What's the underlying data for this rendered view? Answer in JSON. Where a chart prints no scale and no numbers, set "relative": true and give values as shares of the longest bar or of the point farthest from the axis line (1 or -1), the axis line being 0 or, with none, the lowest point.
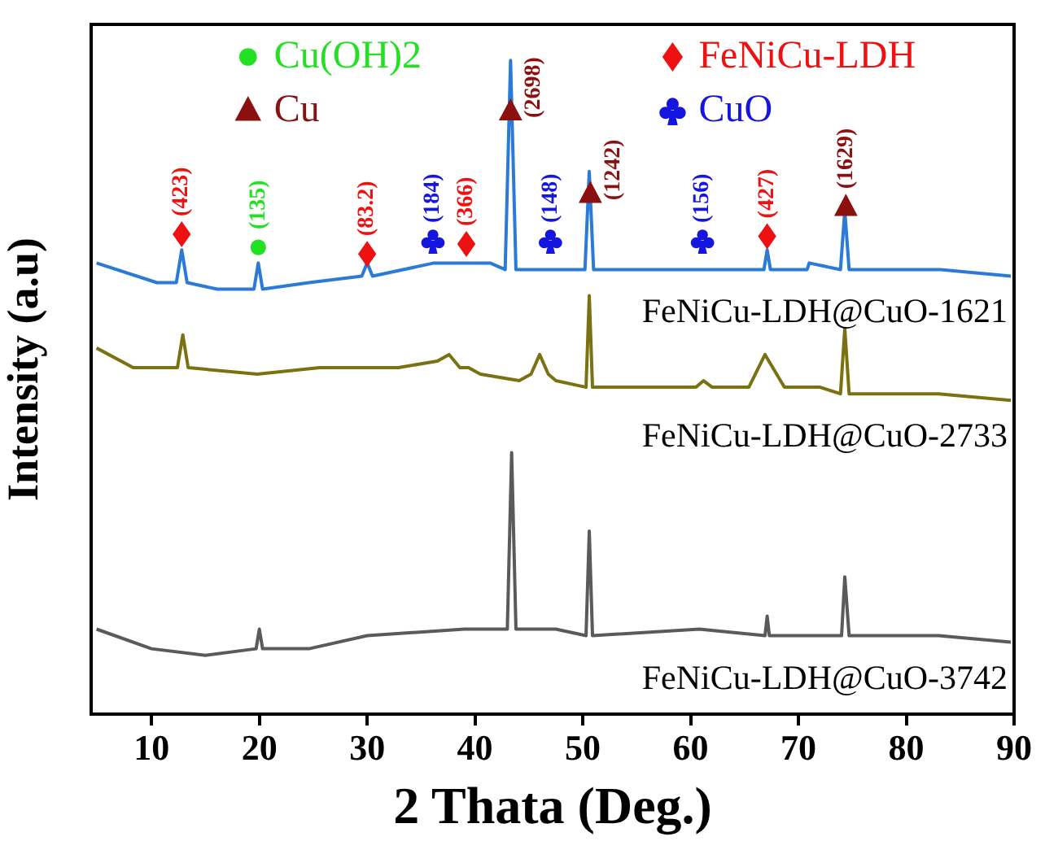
{
  "chart_data": {
    "type": "line",
    "relative": true,
    "xlabel": "2 Thata (Deg.)",
    "ylabel": "Intensity (a.u)",
    "xlim": [
      4.4,
      90
    ],
    "xticks": [
      10,
      20,
      30,
      40,
      50,
      60,
      70,
      80,
      90
    ],
    "legend": "top",
    "series": [
      {
        "name": "FeNiCu-LDH@CuO-1621",
        "color": "#2a7ad6",
        "x": [
          4.9,
          10.5,
          12.3,
          12.8,
          13.3,
          16.1,
          19.5,
          19.9,
          20.3,
          24.6,
          29.5,
          30.0,
          30.5,
          36.2,
          41.4,
          42.8,
          43.3,
          43.8,
          47,
          50.2,
          50.6,
          51.0,
          55.3,
          60.8,
          66.8,
          67.1,
          67.4,
          70.8,
          71,
          73.9,
          74.3,
          74.7,
          83.2,
          89.7
        ],
        "values": [
          0.69,
          0.66,
          0.66,
          0.71,
          0.66,
          0.65,
          0.65,
          0.69,
          0.65,
          0.66,
          0.67,
          0.69,
          0.67,
          0.69,
          0.69,
          0.68,
          1,
          0.68,
          0.68,
          0.68,
          0.83,
          0.68,
          0.68,
          0.68,
          0.68,
          0.71,
          0.68,
          0.68,
          0.69,
          0.68,
          0.77,
          0.68,
          0.68,
          0.67
        ]
      },
      {
        "name": "FeNiCu-LDH@CuO-2733",
        "color": "#7a7212",
        "x": [
          4.9,
          8.3,
          12.4,
          12.9,
          13.4,
          19.8,
          25.6,
          32.9,
          36.5,
          37.6,
          38.6,
          39.4,
          40.5,
          44.1,
          45.2,
          46,
          46.8,
          47.5,
          50.3,
          50.6,
          50.9,
          55,
          60.5,
          61.2,
          62,
          65.4,
          66.9,
          68.7,
          72,
          73.9,
          74.3,
          74.7,
          83,
          89.7
        ],
        "values": [
          0.56,
          0.53,
          0.53,
          0.58,
          0.53,
          0.52,
          0.53,
          0.53,
          0.54,
          0.55,
          0.53,
          0.53,
          0.52,
          0.51,
          0.52,
          0.55,
          0.52,
          0.51,
          0.5,
          0.64,
          0.5,
          0.5,
          0.5,
          0.51,
          0.5,
          0.5,
          0.55,
          0.5,
          0.5,
          0.49,
          0.59,
          0.49,
          0.49,
          0.48
        ]
      },
      {
        "name": "FeNiCu-LDH@CuO-3742",
        "color": "#5a5a5a",
        "x": [
          4.9,
          10,
          15,
          19.7,
          20,
          20.3,
          24.6,
          30,
          39,
          43.0,
          43.4,
          43.8,
          47.5,
          50.3,
          50.6,
          50.9,
          60.8,
          66.9,
          67.1,
          67.3,
          72,
          74.0,
          74.3,
          74.7,
          83,
          89.7
        ],
        "values": [
          0.13,
          0.1,
          0.09,
          0.1,
          0.13,
          0.1,
          0.1,
          0.12,
          0.13,
          0.13,
          0.4,
          0.13,
          0.13,
          0.12,
          0.28,
          0.12,
          0.13,
          0.12,
          0.15,
          0.12,
          0.12,
          0.12,
          0.21,
          0.12,
          0.12,
          0.11
        ]
      },
      {
        "type": "scatter",
        "name": "Cu(OH)2",
        "color": "#22e022",
        "marker": "circle",
        "x": [
          19.9
        ],
        "values": [
          0.714
        ]
      },
      {
        "type": "scatter",
        "name": "Cu",
        "color": "#8b1010",
        "marker": "triangle",
        "x": [
          43.3,
          50.7,
          74.4
        ],
        "values": [
          0.922,
          0.796,
          0.776
        ]
      },
      {
        "type": "scatter",
        "name": "FeNiCu-LDH",
        "color": "#ee1111",
        "marker": "diamond",
        "x": [
          12.8,
          30.0,
          39.2,
          67.1
        ],
        "values": [
          0.734,
          0.704,
          0.719,
          0.731
        ]
      },
      {
        "type": "scatter",
        "name": "CuO",
        "color": "#1515e0",
        "marker": "cross",
        "x": [
          36.1,
          47.0,
          61.1
        ],
        "values": [
          0.724,
          0.724,
          0.724
        ]
      }
    ],
    "annotations": [
      {
        "text": "(423)",
        "x": 12.8,
        "y": 0.734
      },
      {
        "text": "(135)",
        "x": 19.9,
        "y": 0.714
      },
      {
        "text": "(83.2)",
        "x": 30.0,
        "y": 0.704
      },
      {
        "text": "(184)",
        "x": 36.1,
        "y": 0.724
      },
      {
        "text": "(366)",
        "x": 39.2,
        "y": 0.719
      },
      {
        "text": "(2698)",
        "x": 43.3,
        "y": 0.922
      },
      {
        "text": "(148)",
        "x": 47.0,
        "y": 0.724
      },
      {
        "text": "(1242)",
        "x": 50.7,
        "y": 0.796
      },
      {
        "text": "(156)",
        "x": 61.1,
        "y": 0.724
      },
      {
        "text": "(427)",
        "x": 67.1,
        "y": 0.731
      },
      {
        "text": "(1629)",
        "x": 74.4,
        "y": 0.776
      }
    ]
  }
}
